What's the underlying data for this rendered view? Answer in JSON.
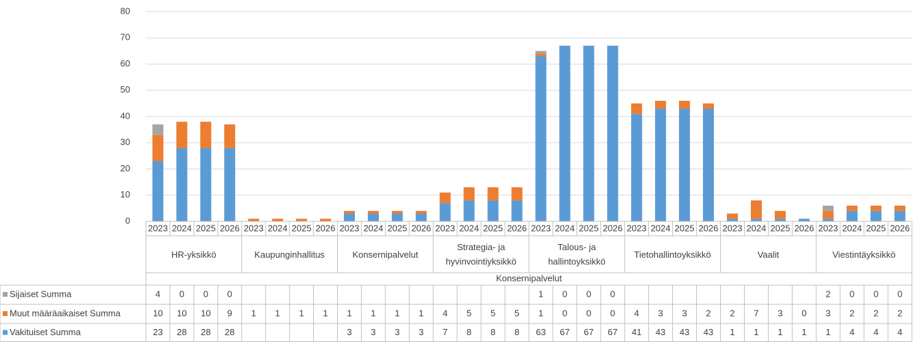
{
  "chart_data": {
    "type": "stacked-bar",
    "ylim": [
      0,
      80
    ],
    "yticks": [
      0,
      10,
      20,
      30,
      40,
      50,
      60,
      70,
      80
    ],
    "grid": true,
    "top_group": "Konsernipalvelut",
    "groups": [
      "HR-yksikkö",
      "Kaupunginhallitus",
      "Konsernipalvelut",
      "Strategia- ja hyvinvointiyksikkö",
      "Talous- ja hallintoyksikkö",
      "Tietohallintoyksikkö",
      "Vaalit",
      "Viestintäyksikkö"
    ],
    "categories": [
      "2023",
      "2024",
      "2025",
      "2026",
      "2023",
      "2024",
      "2025",
      "2026",
      "2023",
      "2024",
      "2025",
      "2026",
      "2023",
      "2024",
      "2025",
      "2026",
      "2023",
      "2024",
      "2025",
      "2026",
      "2023",
      "2024",
      "2025",
      "2026",
      "2023",
      "2024",
      "2025",
      "2026",
      "2023",
      "2024",
      "2025",
      "2026"
    ],
    "series": [
      {
        "name": "Sijaiset Summa",
        "color": "#a5a5a5",
        "values": [
          4,
          0,
          0,
          0,
          null,
          null,
          null,
          null,
          null,
          null,
          null,
          null,
          null,
          null,
          null,
          null,
          1,
          0,
          0,
          0,
          null,
          null,
          null,
          null,
          null,
          null,
          null,
          null,
          2,
          0,
          0,
          0
        ]
      },
      {
        "name": "Muut määräaikaiset Summa",
        "color": "#ed7d31",
        "values": [
          10,
          10,
          10,
          9,
          1,
          1,
          1,
          1,
          1,
          1,
          1,
          1,
          4,
          5,
          5,
          5,
          1,
          0,
          0,
          0,
          4,
          3,
          3,
          2,
          2,
          7,
          3,
          0,
          3,
          2,
          2,
          2
        ]
      },
      {
        "name": "Vakituiset Summa",
        "color": "#5b9bd5",
        "values": [
          23,
          28,
          28,
          28,
          null,
          null,
          null,
          null,
          3,
          3,
          3,
          3,
          7,
          8,
          8,
          8,
          63,
          67,
          67,
          67,
          41,
          43,
          43,
          43,
          1,
          1,
          1,
          1,
          1,
          4,
          4,
          4
        ]
      }
    ]
  }
}
